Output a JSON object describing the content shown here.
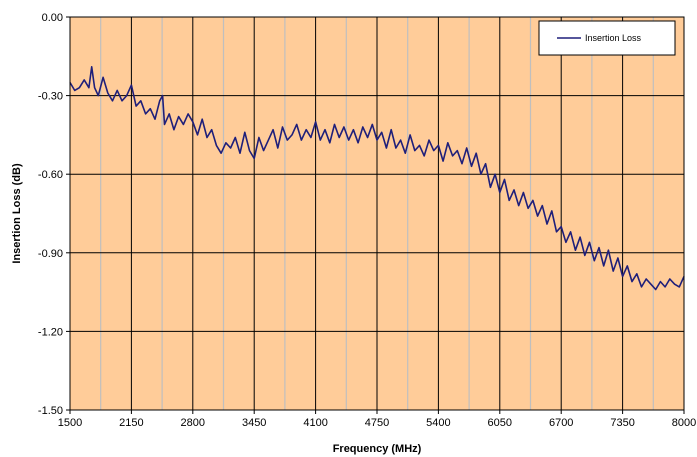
{
  "chart_data": {
    "type": "line",
    "title": "",
    "xlabel": "Frequency (MHz)",
    "ylabel": "Insertion Loss (dB)",
    "xlim": [
      1500,
      8000
    ],
    "ylim": [
      -1.5,
      0.0
    ],
    "x_ticks": [
      1500,
      2150,
      2800,
      3450,
      4100,
      4750,
      5400,
      6050,
      6700,
      7350,
      8000
    ],
    "x_tick_labels": [
      "1500",
      "2150",
      "2800",
      "3450",
      "4100",
      "4750",
      "5400",
      "6050",
      "6700",
      "7350",
      "8000"
    ],
    "y_ticks": [
      0.0,
      -0.3,
      -0.6,
      -0.9,
      -1.2,
      -1.5
    ],
    "y_tick_labels": [
      "0.00",
      "-0.30",
      "-0.60",
      "-0.90",
      "-1.20",
      "-1.50"
    ],
    "grid": true,
    "legend": "top-right",
    "colors": {
      "plot_background": "#FFCC99",
      "major_grid": "#000000",
      "minor_grid": "#BFBFBF",
      "series": "#1F1F7A"
    },
    "series": [
      {
        "name": "Insertion Loss",
        "x": [
          1500,
          1550,
          1600,
          1650,
          1700,
          1730,
          1760,
          1800,
          1850,
          1900,
          1950,
          2000,
          2050,
          2100,
          2150,
          2200,
          2250,
          2300,
          2350,
          2400,
          2450,
          2480,
          2500,
          2550,
          2600,
          2650,
          2700,
          2750,
          2800,
          2850,
          2900,
          2950,
          3000,
          3050,
          3100,
          3150,
          3200,
          3250,
          3300,
          3350,
          3400,
          3450,
          3500,
          3550,
          3600,
          3650,
          3700,
          3750,
          3800,
          3850,
          3900,
          3950,
          4000,
          4050,
          4100,
          4150,
          4200,
          4250,
          4300,
          4350,
          4400,
          4450,
          4500,
          4550,
          4600,
          4650,
          4700,
          4750,
          4800,
          4850,
          4900,
          4950,
          5000,
          5050,
          5100,
          5150,
          5200,
          5250,
          5300,
          5350,
          5400,
          5450,
          5500,
          5550,
          5600,
          5650,
          5700,
          5750,
          5800,
          5850,
          5900,
          5950,
          6000,
          6050,
          6100,
          6150,
          6200,
          6250,
          6300,
          6350,
          6400,
          6450,
          6500,
          6550,
          6600,
          6650,
          6700,
          6750,
          6800,
          6850,
          6900,
          6950,
          7000,
          7050,
          7100,
          7150,
          7200,
          7250,
          7300,
          7350,
          7400,
          7450,
          7500,
          7550,
          7600,
          7650,
          7700,
          7750,
          7800,
          7850,
          7900,
          7950,
          8000
        ],
        "y": [
          -0.25,
          -0.28,
          -0.27,
          -0.24,
          -0.27,
          -0.19,
          -0.27,
          -0.3,
          -0.23,
          -0.29,
          -0.32,
          -0.28,
          -0.32,
          -0.3,
          -0.26,
          -0.34,
          -0.32,
          -0.37,
          -0.35,
          -0.39,
          -0.32,
          -0.3,
          -0.41,
          -0.37,
          -0.43,
          -0.38,
          -0.41,
          -0.37,
          -0.4,
          -0.45,
          -0.39,
          -0.46,
          -0.43,
          -0.49,
          -0.52,
          -0.48,
          -0.5,
          -0.46,
          -0.52,
          -0.44,
          -0.51,
          -0.54,
          -0.46,
          -0.51,
          -0.47,
          -0.43,
          -0.5,
          -0.42,
          -0.47,
          -0.45,
          -0.41,
          -0.47,
          -0.43,
          -0.46,
          -0.4,
          -0.47,
          -0.43,
          -0.48,
          -0.41,
          -0.46,
          -0.42,
          -0.47,
          -0.43,
          -0.48,
          -0.42,
          -0.46,
          -0.41,
          -0.47,
          -0.44,
          -0.5,
          -0.43,
          -0.5,
          -0.47,
          -0.52,
          -0.45,
          -0.51,
          -0.49,
          -0.53,
          -0.47,
          -0.51,
          -0.49,
          -0.55,
          -0.48,
          -0.53,
          -0.51,
          -0.56,
          -0.5,
          -0.57,
          -0.52,
          -0.6,
          -0.56,
          -0.65,
          -0.6,
          -0.67,
          -0.62,
          -0.7,
          -0.66,
          -0.72,
          -0.67,
          -0.73,
          -0.7,
          -0.76,
          -0.72,
          -0.79,
          -0.74,
          -0.82,
          -0.8,
          -0.86,
          -0.82,
          -0.89,
          -0.84,
          -0.91,
          -0.86,
          -0.93,
          -0.88,
          -0.95,
          -0.89,
          -0.97,
          -0.92,
          -0.99,
          -0.95,
          -1.01,
          -0.98,
          -1.03,
          -1.0,
          -1.02,
          -1.04,
          -1.01,
          -1.03,
          -1.0,
          -1.02,
          -1.03,
          -0.99
        ]
      }
    ]
  }
}
